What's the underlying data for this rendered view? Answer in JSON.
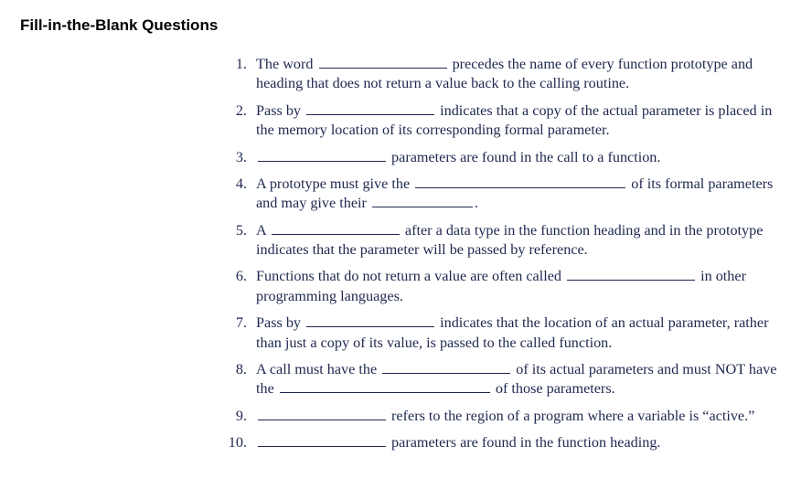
{
  "title": "Fill-in-the-Blank Questions",
  "text_color": "#1f284f",
  "title_color": "#000000",
  "background_color": "#ffffff",
  "font_body": "Georgia, Times New Roman, serif",
  "font_title": "Arial, Helvetica, sans-serif",
  "font_size_body_pt": 12,
  "font_size_title_pt": 13,
  "blank_placeholder": "________________",
  "questions": {
    "q1": {
      "pre1": "The word ",
      "post1": " precedes the name of every function proto­type and heading that does not return a value back to the calling routine."
    },
    "q2": {
      "pre1": "Pass by ",
      "post1": " indicates that a copy of the actual parameter is placed in the memory location of its corresponding formal parameter."
    },
    "q3": {
      "post1": " parameters are found in the call to a function."
    },
    "q4": {
      "pre1": "A prototype must give the ",
      "post1": " of its formal parameters and may give their ",
      "post2": "."
    },
    "q5": {
      "pre1": "A ",
      "post1": " after a data type in the function heading and in the prototype indicates that the parameter will be passed by reference."
    },
    "q6": {
      "pre1": "Functions that do not return a value are often called ",
      "post1": " in other programming languages."
    },
    "q7": {
      "pre1": "Pass by ",
      "post1": " indicates that the location of an actual parame­ter, rather than just a copy of its value, is passed to the called function."
    },
    "q8": {
      "pre1": "A call must have the ",
      "mid1": " of its actual parameters and must NOT have the ",
      "post1": " of those parameters."
    },
    "q9": {
      "post1": " refers to the region of a program where a variable is “active.”"
    },
    "q10": {
      "post1": " parameters are found in the function heading."
    }
  }
}
